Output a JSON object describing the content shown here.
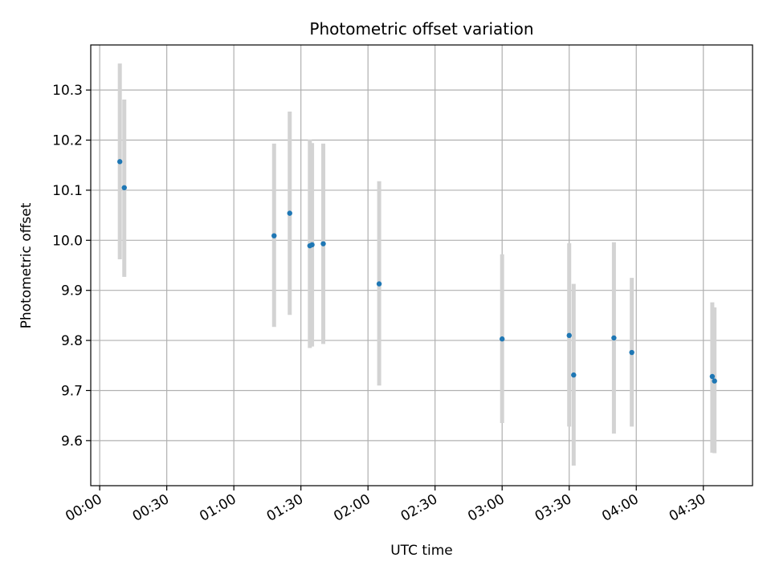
{
  "chart_data": {
    "type": "scatter",
    "title": "Photometric offset variation",
    "xlabel": "UTC time",
    "ylabel": "Photometric offset",
    "x_unit": "time of day (HH:MM)",
    "xlim": [
      "-00:04",
      "04:52"
    ],
    "ylim": [
      9.51,
      10.39
    ],
    "x_ticks": [
      "00:00",
      "00:30",
      "01:00",
      "01:30",
      "02:00",
      "02:30",
      "03:00",
      "03:30",
      "04:00",
      "04:30"
    ],
    "y_ticks": [
      "9.6",
      "9.7",
      "9.8",
      "9.9",
      "10.0",
      "10.1",
      "10.2",
      "10.3"
    ],
    "grid": true,
    "marker_color": "#1f77b4",
    "errorbar_color": "#d3d3d3",
    "points": [
      {
        "x": "00:09",
        "y": 10.157,
        "err_low": 9.962,
        "err_high": 10.353
      },
      {
        "x": "00:11",
        "y": 10.105,
        "err_low": 9.927,
        "err_high": 10.281
      },
      {
        "x": "01:18",
        "y": 10.009,
        "err_low": 9.827,
        "err_high": 10.193
      },
      {
        "x": "01:25",
        "y": 10.054,
        "err_low": 9.851,
        "err_high": 10.257
      },
      {
        "x": "01:34",
        "y": 9.989,
        "err_low": 9.785,
        "err_high": 10.201
      },
      {
        "x": "01:35",
        "y": 9.991,
        "err_low": 9.788,
        "err_high": 10.194
      },
      {
        "x": "01:40",
        "y": 9.993,
        "err_low": 9.793,
        "err_high": 10.193
      },
      {
        "x": "02:05",
        "y": 9.913,
        "err_low": 9.71,
        "err_high": 10.118
      },
      {
        "x": "03:00",
        "y": 9.803,
        "err_low": 9.635,
        "err_high": 9.972
      },
      {
        "x": "03:30",
        "y": 9.81,
        "err_low": 9.628,
        "err_high": 9.994
      },
      {
        "x": "03:32",
        "y": 9.731,
        "err_low": 9.55,
        "err_high": 9.913
      },
      {
        "x": "03:50",
        "y": 9.805,
        "err_low": 9.614,
        "err_high": 9.996
      },
      {
        "x": "03:58",
        "y": 9.776,
        "err_low": 9.628,
        "err_high": 9.925
      },
      {
        "x": "04:34",
        "y": 9.728,
        "err_low": 9.576,
        "err_high": 9.876
      },
      {
        "x": "04:35",
        "y": 9.719,
        "err_low": 9.575,
        "err_high": 9.866
      }
    ]
  }
}
